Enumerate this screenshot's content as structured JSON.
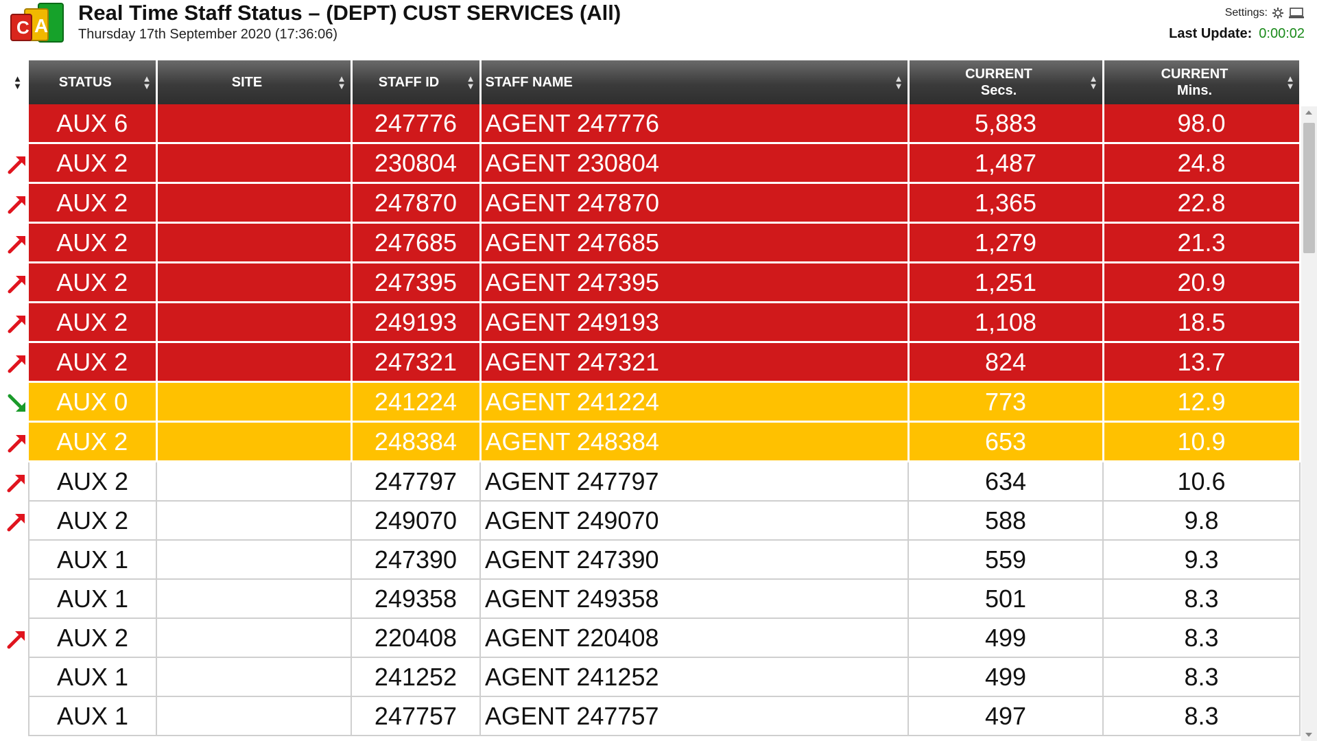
{
  "header": {
    "title": "Real Time Staff Status – (DEPT) CUST SERVICES (All)",
    "subtitle": "Thursday 17th September 2020 (17:36:06)",
    "settings_label": "Settings:",
    "last_update_label": "Last Update:",
    "last_update_value": "0:00:02"
  },
  "colors": {
    "red": "#d0191b",
    "amber": "#ffc100",
    "up_arrow": "#e0141e",
    "down_arrow": "#1a9a2a",
    "last_update": "#1a8a1a"
  },
  "icons": {
    "logo": "cca-logo-icon",
    "settings": "gear-icon",
    "display": "monitor-icon",
    "sort": "sort-arrows-icon",
    "trend_up": "trend-up-arrow-icon",
    "trend_down": "trend-down-arrow-icon"
  },
  "columns": {
    "status": "STATUS",
    "site": "SITE",
    "staff_id": "STAFF ID",
    "staff_name": "STAFF NAME",
    "current_secs_1": "CURRENT",
    "current_secs_2": "Secs.",
    "current_mins_1": "CURRENT",
    "current_mins_2": "Mins."
  },
  "rows": [
    {
      "trend": "none",
      "color": "red",
      "status": "AUX 6",
      "site": "",
      "staff_id": "247776",
      "staff_name": "AGENT 247776",
      "secs": "5,883",
      "mins": "98.0"
    },
    {
      "trend": "up",
      "color": "red",
      "status": "AUX 2",
      "site": "",
      "staff_id": "230804",
      "staff_name": "AGENT 230804",
      "secs": "1,487",
      "mins": "24.8"
    },
    {
      "trend": "up",
      "color": "red",
      "status": "AUX 2",
      "site": "",
      "staff_id": "247870",
      "staff_name": "AGENT 247870",
      "secs": "1,365",
      "mins": "22.8"
    },
    {
      "trend": "up",
      "color": "red",
      "status": "AUX 2",
      "site": "",
      "staff_id": "247685",
      "staff_name": "AGENT 247685",
      "secs": "1,279",
      "mins": "21.3"
    },
    {
      "trend": "up",
      "color": "red",
      "status": "AUX 2",
      "site": "",
      "staff_id": "247395",
      "staff_name": "AGENT 247395",
      "secs": "1,251",
      "mins": "20.9"
    },
    {
      "trend": "up",
      "color": "red",
      "status": "AUX 2",
      "site": "",
      "staff_id": "249193",
      "staff_name": "AGENT 249193",
      "secs": "1,108",
      "mins": "18.5"
    },
    {
      "trend": "up",
      "color": "red",
      "status": "AUX 2",
      "site": "",
      "staff_id": "247321",
      "staff_name": "AGENT 247321",
      "secs": "824",
      "mins": "13.7"
    },
    {
      "trend": "down",
      "color": "amber",
      "status": "AUX 0",
      "site": "",
      "staff_id": "241224",
      "staff_name": "AGENT 241224",
      "secs": "773",
      "mins": "12.9"
    },
    {
      "trend": "up",
      "color": "amber",
      "status": "AUX 2",
      "site": "",
      "staff_id": "248384",
      "staff_name": "AGENT 248384",
      "secs": "653",
      "mins": "10.9"
    },
    {
      "trend": "up",
      "color": "white",
      "status": "AUX 2",
      "site": "",
      "staff_id": "247797",
      "staff_name": "AGENT 247797",
      "secs": "634",
      "mins": "10.6"
    },
    {
      "trend": "up",
      "color": "white",
      "status": "AUX 2",
      "site": "",
      "staff_id": "249070",
      "staff_name": "AGENT 249070",
      "secs": "588",
      "mins": "9.8"
    },
    {
      "trend": "none",
      "color": "white",
      "status": "AUX 1",
      "site": "",
      "staff_id": "247390",
      "staff_name": "AGENT 247390",
      "secs": "559",
      "mins": "9.3"
    },
    {
      "trend": "none",
      "color": "white",
      "status": "AUX 1",
      "site": "",
      "staff_id": "249358",
      "staff_name": "AGENT 249358",
      "secs": "501",
      "mins": "8.3"
    },
    {
      "trend": "up",
      "color": "white",
      "status": "AUX 2",
      "site": "",
      "staff_id": "220408",
      "staff_name": "AGENT 220408",
      "secs": "499",
      "mins": "8.3"
    },
    {
      "trend": "none",
      "color": "white",
      "status": "AUX 1",
      "site": "",
      "staff_id": "241252",
      "staff_name": "AGENT 241252",
      "secs": "499",
      "mins": "8.3"
    },
    {
      "trend": "none",
      "color": "white",
      "status": "AUX 1",
      "site": "",
      "staff_id": "247757",
      "staff_name": "AGENT 247757",
      "secs": "497",
      "mins": "8.3"
    }
  ]
}
